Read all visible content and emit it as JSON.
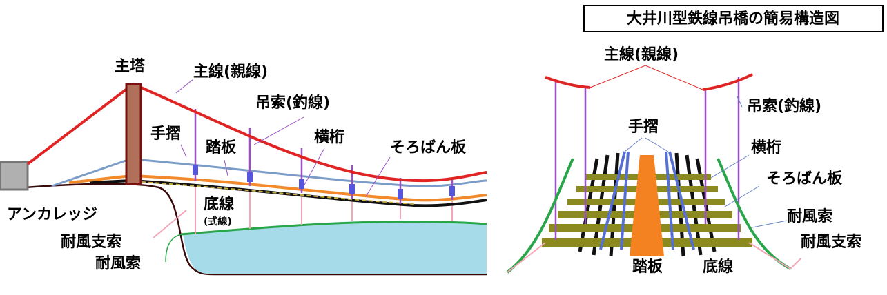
{
  "title": "大井川型鉄線吊橋の簡易構造図",
  "side_view": {
    "labels": [
      "主塔",
      "主線(親線)",
      "吊索(釣線)",
      "手摺",
      "踏板",
      "横桁",
      "そろばん板",
      "底線",
      "(式線)",
      "アンカレッジ",
      "耐風支索",
      "耐風索"
    ]
  },
  "cross_section": {
    "labels": [
      "主線(親線)",
      "吊索(釣線)",
      "手摺",
      "横桁",
      "そろばん板",
      "耐風索",
      "耐風支索",
      "踏板",
      "底線"
    ]
  }
}
